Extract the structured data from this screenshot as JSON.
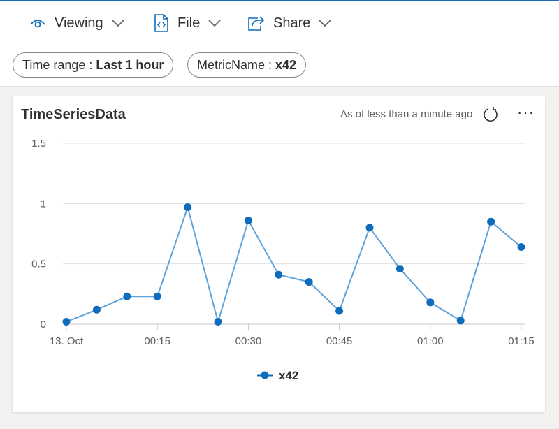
{
  "toolbar": {
    "viewing_label": "Viewing",
    "file_label": "File",
    "share_label": "Share",
    "accent": "#0f6cbd"
  },
  "filters": {
    "time_range": {
      "label": "Time range :",
      "value": "Last 1 hour"
    },
    "metric_name": {
      "label": "MetricName :",
      "value": "x42"
    }
  },
  "card": {
    "title": "TimeSeriesData",
    "as_of": "As of less than a minute ago",
    "more_label": "···"
  },
  "chart_data": {
    "type": "line",
    "title": "",
    "xlabel": "",
    "ylabel": "",
    "x_ticks": [
      "13. Oct",
      "00:15",
      "00:30",
      "00:45",
      "01:00",
      "01:15"
    ],
    "y_ticks": [
      "1.5",
      "1",
      "0.5",
      "0"
    ],
    "ylim": [
      0,
      1.5
    ],
    "x": [
      "00:00",
      "00:05",
      "00:10",
      "00:15",
      "00:20",
      "00:25",
      "00:30",
      "00:35",
      "00:40",
      "00:45",
      "00:50",
      "00:55",
      "01:00",
      "01:05",
      "01:10",
      "01:15"
    ],
    "series": [
      {
        "name": "x42",
        "color": "#0f6cbd",
        "values": [
          0.02,
          0.12,
          0.23,
          0.23,
          0.97,
          0.02,
          0.86,
          0.41,
          0.35,
          0.11,
          0.8,
          0.46,
          0.18,
          0.03,
          0.85,
          0.64
        ]
      }
    ],
    "grid": true,
    "legend": "bottom-center"
  }
}
